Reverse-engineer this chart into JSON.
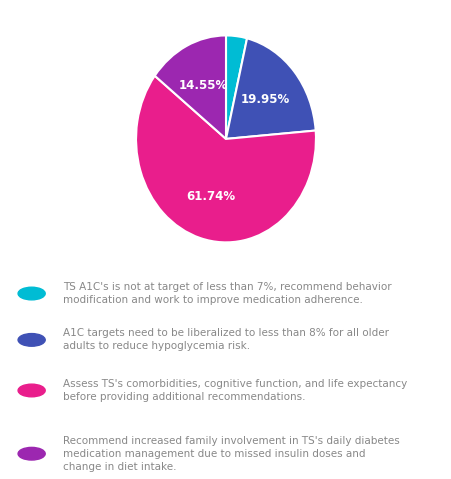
{
  "slices": [
    3.76,
    19.95,
    61.74,
    14.55
  ],
  "labels": [
    "",
    "19.95%",
    "61.74%",
    "14.55%"
  ],
  "colors": [
    "#00bcd4",
    "#3f51b5",
    "#e91e8c",
    "#9c27b0"
  ],
  "startangle": 90,
  "legend_items": [
    {
      "color": "#00bcd4",
      "text": "TS A1C's is not at target of less than 7%, recommend behavior\nmodification and work to improve medication adherence."
    },
    {
      "color": "#3f51b5",
      "text": "A1C targets need to be liberalized to less than 8% for all older\nadults to reduce hypoglycemia risk."
    },
    {
      "color": "#e91e8c",
      "text": "Assess TS's comorbidities, cognitive function, and life expectancy\nbefore providing additional recommendations."
    },
    {
      "color": "#9c27b0",
      "text": "Recommend increased family involvement in TS's daily diabetes\nmedication management due to missed insulin doses and\nchange in diet intake."
    }
  ],
  "label_fontsize": 8.5,
  "legend_fontsize": 7.5,
  "background_color": "#ffffff",
  "text_color": "#888888"
}
